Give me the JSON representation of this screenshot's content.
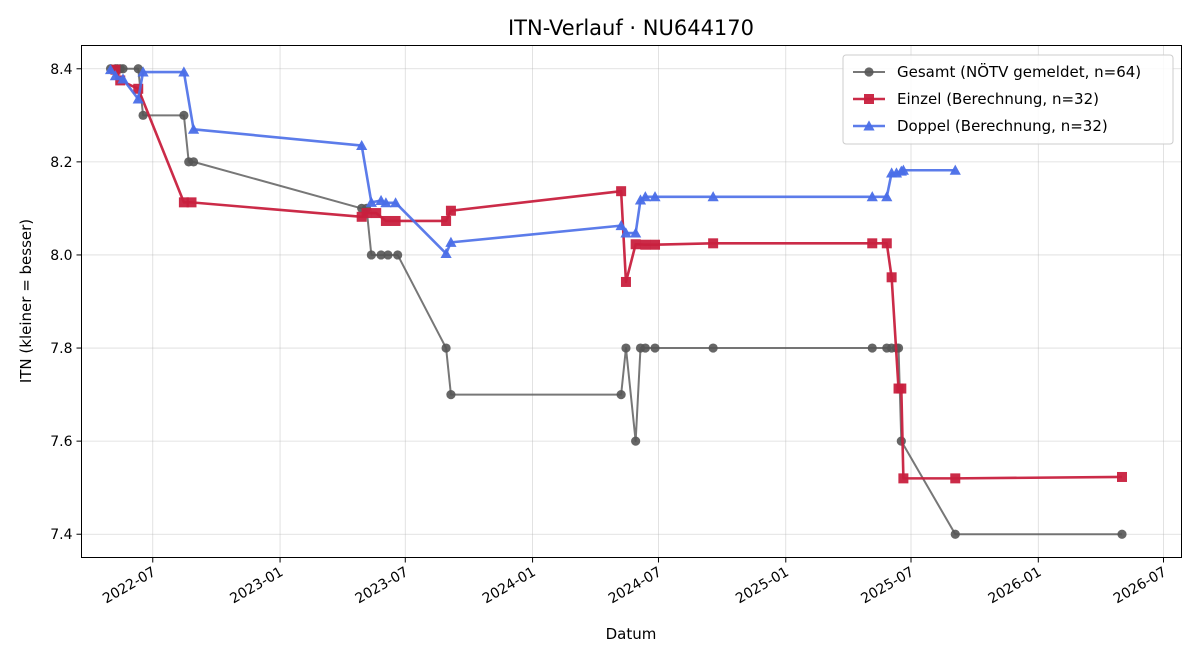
{
  "chart_data": {
    "type": "line",
    "title": "ITN-Verlauf · NU644170",
    "xlabel": "Datum",
    "ylabel": "ITN  (kleiner = besser)",
    "x_axis": {
      "kind": "date",
      "range": [
        "2022-03-20",
        "2026-07-27"
      ],
      "ticks": [
        "2022-07-01",
        "2023-01-01",
        "2023-07-01",
        "2024-01-01",
        "2024-07-01",
        "2025-01-01",
        "2025-07-01",
        "2026-01-01",
        "2026-07-01"
      ],
      "tick_labels": [
        "2022-07",
        "2023-01",
        "2023-07",
        "2024-01",
        "2024-07",
        "2025-01",
        "2025-07",
        "2026-01",
        "2026-07"
      ]
    },
    "ylim": [
      7.35,
      8.45
    ],
    "yticks": [
      7.4,
      7.6,
      7.8,
      8.0,
      8.2,
      8.4
    ],
    "ytick_labels": [
      "7.4",
      "7.6",
      "7.8",
      "8.0",
      "8.2",
      "8.4"
    ],
    "grid": true,
    "legend_position": "top-right",
    "series": [
      {
        "name": "Gesamt (NÖTV gemeldet, n=64)",
        "color": "#555555",
        "marker": "circle",
        "points": [
          [
            "2022-05-01",
            8.4
          ],
          [
            "2022-05-08",
            8.4
          ],
          [
            "2022-05-11",
            8.4
          ],
          [
            "2022-05-15",
            8.4
          ],
          [
            "2022-05-19",
            8.4
          ],
          [
            "2022-06-10",
            8.4
          ],
          [
            "2022-06-17",
            8.3
          ],
          [
            "2022-08-15",
            8.3
          ],
          [
            "2022-08-22",
            8.2
          ],
          [
            "2022-08-29",
            8.2
          ],
          [
            "2023-04-29",
            8.1
          ],
          [
            "2023-05-06",
            8.1
          ],
          [
            "2023-05-13",
            8.0
          ],
          [
            "2023-05-27",
            8.0
          ],
          [
            "2023-06-06",
            8.0
          ],
          [
            "2023-06-20",
            8.0
          ],
          [
            "2023-08-29",
            7.8
          ],
          [
            "2023-09-05",
            7.7
          ],
          [
            "2024-05-08",
            7.7
          ],
          [
            "2024-05-15",
            7.8
          ],
          [
            "2024-05-29",
            7.6
          ],
          [
            "2024-06-05",
            7.8
          ],
          [
            "2024-06-12",
            7.8
          ],
          [
            "2024-06-26",
            7.8
          ],
          [
            "2024-09-18",
            7.8
          ],
          [
            "2025-05-06",
            7.8
          ],
          [
            "2025-05-27",
            7.8
          ],
          [
            "2025-06-03",
            7.8
          ],
          [
            "2025-06-10",
            7.8
          ],
          [
            "2025-06-13",
            7.8
          ],
          [
            "2025-06-17",
            7.6
          ],
          [
            "2025-09-03",
            7.4
          ],
          [
            "2026-05-02",
            7.4
          ]
        ]
      },
      {
        "name": "Einzel (Berechnung, n=32)",
        "color": "#c8203e",
        "marker": "square",
        "points": [
          [
            "2022-05-08",
            8.398
          ],
          [
            "2022-05-15",
            8.375
          ],
          [
            "2022-06-10",
            8.357
          ],
          [
            "2022-08-15",
            8.113
          ],
          [
            "2022-08-26",
            8.113
          ],
          [
            "2023-04-29",
            8.082
          ],
          [
            "2023-05-06",
            8.09
          ],
          [
            "2023-05-20",
            8.09
          ],
          [
            "2023-06-03",
            8.073
          ],
          [
            "2023-06-17",
            8.073
          ],
          [
            "2023-08-29",
            8.073
          ],
          [
            "2023-09-05",
            8.095
          ],
          [
            "2024-05-08",
            8.137
          ],
          [
            "2024-05-15",
            7.942
          ],
          [
            "2024-05-29",
            8.023
          ],
          [
            "2024-06-12",
            8.022
          ],
          [
            "2024-06-26",
            8.022
          ],
          [
            "2024-09-18",
            8.025
          ],
          [
            "2025-05-06",
            8.025
          ],
          [
            "2025-05-27",
            8.025
          ],
          [
            "2025-06-03",
            7.952
          ],
          [
            "2025-06-13",
            7.713
          ],
          [
            "2025-06-17",
            7.713
          ],
          [
            "2025-06-20",
            7.52
          ],
          [
            "2025-09-03",
            7.52
          ],
          [
            "2026-05-02",
            7.523
          ]
        ]
      },
      {
        "name": "Doppel (Berechnung, n=32)",
        "color": "#4a6ee8",
        "marker": "triangle",
        "points": [
          [
            "2022-05-01",
            8.398
          ],
          [
            "2022-05-08",
            8.385
          ],
          [
            "2022-05-19",
            8.378
          ],
          [
            "2022-06-10",
            8.335
          ],
          [
            "2022-06-17",
            8.393
          ],
          [
            "2022-08-15",
            8.393
          ],
          [
            "2022-08-29",
            8.27
          ],
          [
            "2023-04-29",
            8.235
          ],
          [
            "2023-05-13",
            8.113
          ],
          [
            "2023-05-27",
            8.117
          ],
          [
            "2023-06-03",
            8.112
          ],
          [
            "2023-06-17",
            8.112
          ],
          [
            "2023-08-29",
            8.003
          ],
          [
            "2023-09-05",
            8.027
          ],
          [
            "2024-05-08",
            8.063
          ],
          [
            "2024-05-15",
            8.047
          ],
          [
            "2024-05-29",
            8.047
          ],
          [
            "2024-06-05",
            8.118
          ],
          [
            "2024-06-12",
            8.125
          ],
          [
            "2024-06-26",
            8.125
          ],
          [
            "2024-09-18",
            8.125
          ],
          [
            "2025-05-06",
            8.125
          ],
          [
            "2025-05-27",
            8.125
          ],
          [
            "2025-06-03",
            8.176
          ],
          [
            "2025-06-10",
            8.176
          ],
          [
            "2025-06-17",
            8.18
          ],
          [
            "2025-06-20",
            8.182
          ],
          [
            "2025-09-03",
            8.182
          ]
        ]
      }
    ]
  }
}
